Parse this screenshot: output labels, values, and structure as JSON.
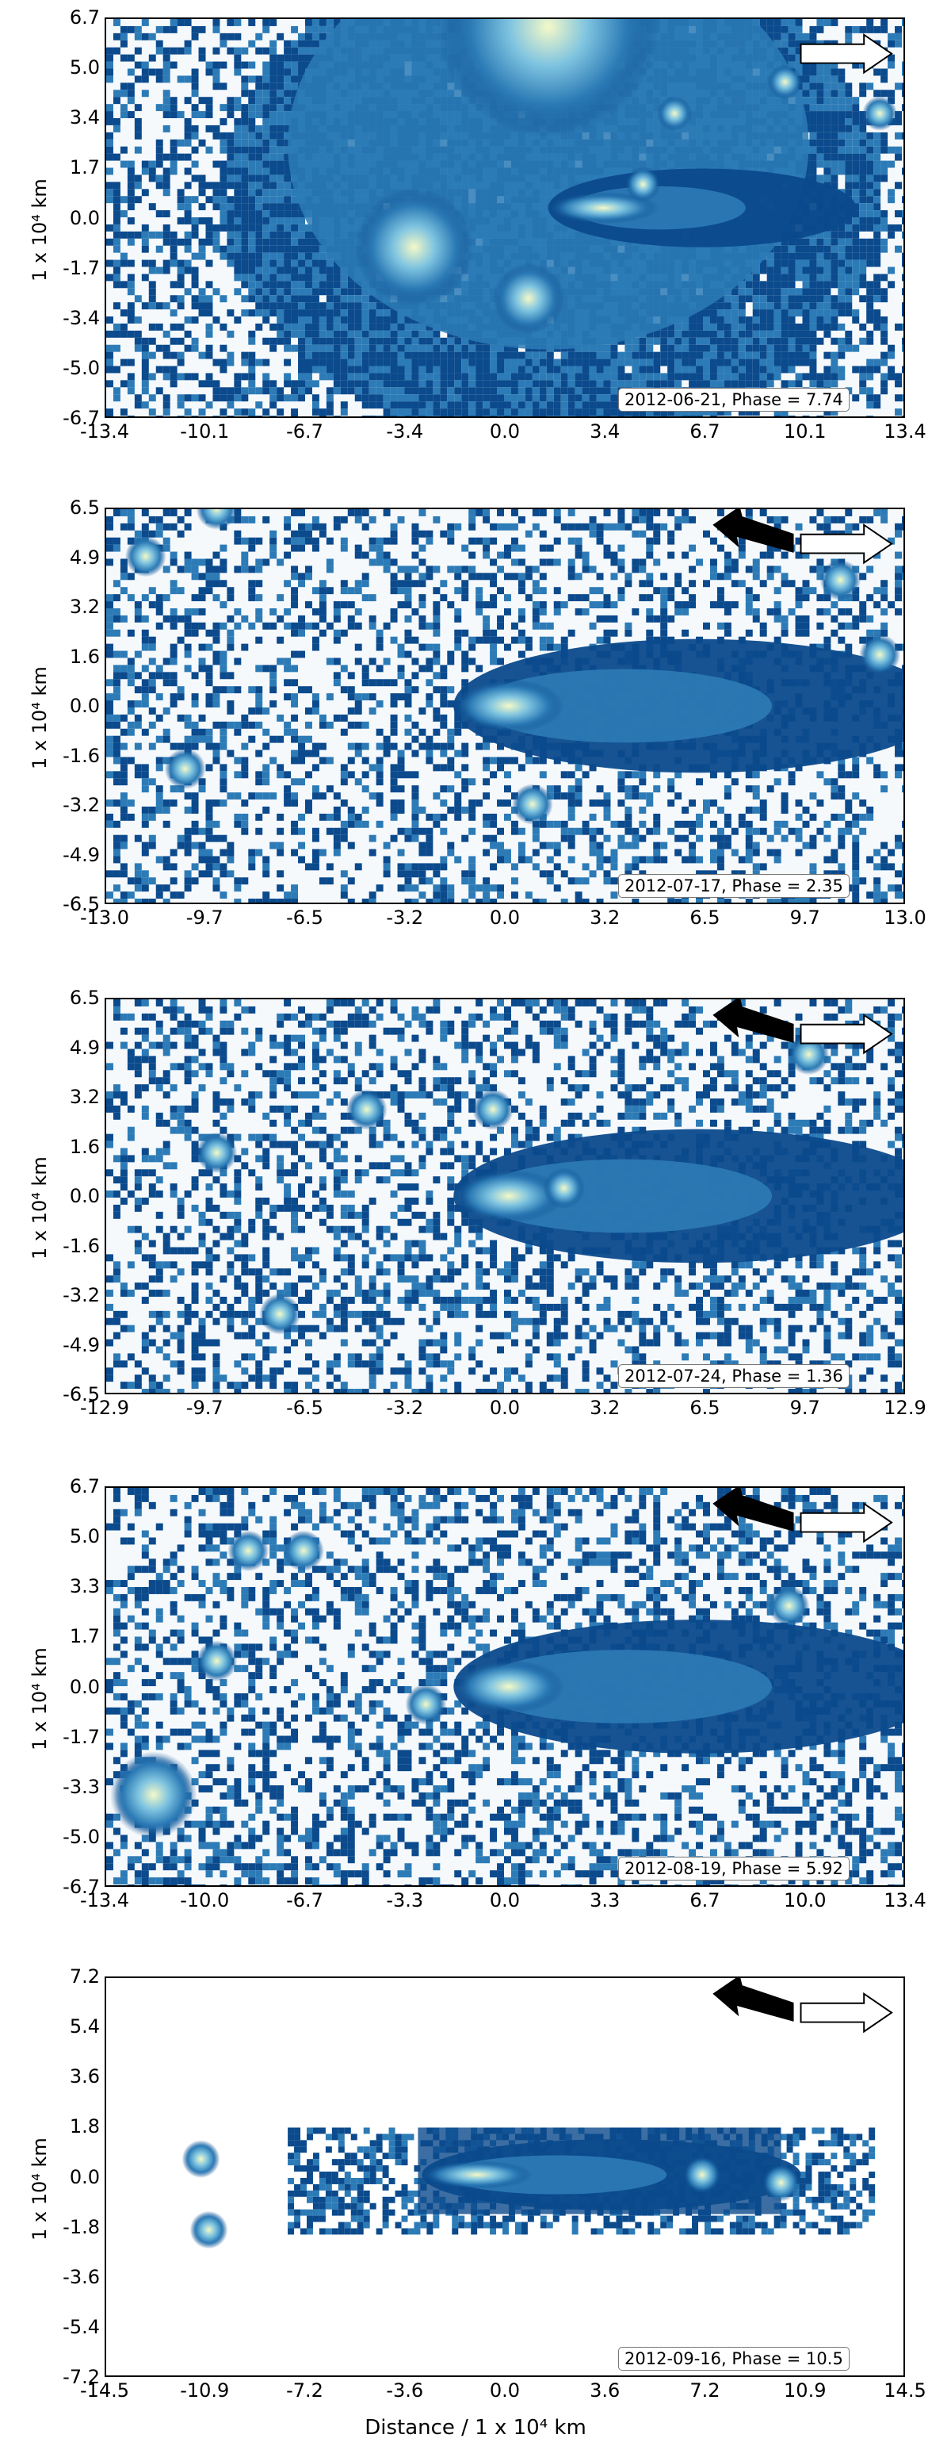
{
  "panels": [
    {
      "date_phase": "2012-06-21, Phase = 7.74",
      "ylabel": "1 x 10⁴ km",
      "y_ticks": [
        "6.7",
        "5.0",
        "3.4",
        "1.7",
        "0.0",
        "-1.7",
        "-3.4",
        "-5.0",
        "-6.7"
      ],
      "x_ticks": [
        "-13.4",
        "-10.1",
        "-6.7",
        "-3.4",
        "0.0",
        "3.4",
        "6.7",
        "10.1",
        "13.4"
      ]
    },
    {
      "date_phase": "2012-07-17, Phase = 2.35",
      "ylabel": "1 x 10⁴ km",
      "y_ticks": [
        "6.5",
        "4.9",
        "3.2",
        "1.6",
        "0.0",
        "-1.6",
        "-3.2",
        "-4.9",
        "-6.5"
      ],
      "x_ticks": [
        "-13.0",
        "-9.7",
        "-6.5",
        "-3.2",
        "0.0",
        "3.2",
        "6.5",
        "9.7",
        "13.0"
      ]
    },
    {
      "date_phase": "2012-07-24, Phase = 1.36",
      "ylabel": "1 x 10⁴ km",
      "y_ticks": [
        "6.5",
        "4.9",
        "3.2",
        "1.6",
        "0.0",
        "-1.6",
        "-3.2",
        "-4.9",
        "-6.5"
      ],
      "x_ticks": [
        "-12.9",
        "-9.7",
        "-6.5",
        "-3.2",
        "0.0",
        "3.2",
        "6.5",
        "9.7",
        "12.9"
      ]
    },
    {
      "date_phase": "2012-08-19, Phase = 5.92",
      "ylabel": "1 x 10⁴ km",
      "y_ticks": [
        "6.7",
        "5.0",
        "3.3",
        "1.7",
        "0.0",
        "-1.7",
        "-3.3",
        "-5.0",
        "-6.7"
      ],
      "x_ticks": [
        "-13.4",
        "-10.0",
        "-6.7",
        "-3.3",
        "0.0",
        "3.3",
        "6.7",
        "10.0",
        "13.4"
      ]
    },
    {
      "date_phase": "2012-09-16, Phase = 10.5",
      "ylabel": "1 x 10⁴ km",
      "y_ticks": [
        "7.2",
        "5.4",
        "3.6",
        "1.8",
        "0.0",
        "-1.8",
        "-3.6",
        "-5.4",
        "-7.2"
      ],
      "x_ticks": [
        "-14.5",
        "-10.9",
        "-7.2",
        "-3.6",
        "0.0",
        "3.6",
        "7.2",
        "10.9",
        "14.5"
      ]
    }
  ],
  "xlabel": "Distance / 1 x 10⁴ km",
  "colors": {
    "deep": "#0b4a8c",
    "mid": "#2c7bb6",
    "light": "#7fc4e0",
    "core": "#f4f9c8",
    "background": "#f6f9fc"
  }
}
